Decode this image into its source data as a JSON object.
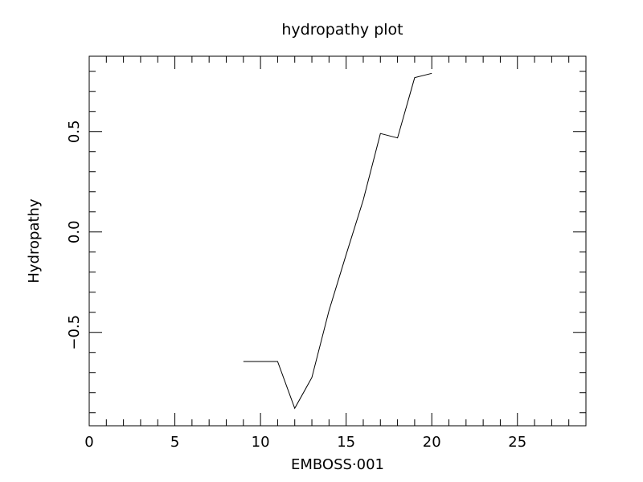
{
  "chart_data": {
    "type": "line",
    "title": "hydropathy plot",
    "xlabel": "EMBOSS·001",
    "ylabel": "Hydropathy",
    "xlim": [
      0,
      29
    ],
    "ylim": [
      -0.965,
      0.875
    ],
    "x_ticks": [
      0,
      5,
      10,
      15,
      20,
      25
    ],
    "x_tick_labels": [
      "0",
      "5",
      "10",
      "15",
      "20",
      "25"
    ],
    "y_ticks": [
      -0.5,
      0.0,
      0.5
    ],
    "y_tick_labels": [
      "−0.5",
      "0.0",
      "0.5"
    ],
    "grid": false,
    "series": [
      {
        "x": [
          9,
          10,
          11,
          12,
          13,
          14,
          15,
          16,
          17,
          18,
          19,
          20
        ],
        "y": [
          -0.645,
          -0.645,
          -0.645,
          -0.878,
          -0.725,
          -0.392,
          -0.112,
          0.16,
          0.49,
          0.468,
          0.768,
          0.79
        ]
      }
    ]
  }
}
